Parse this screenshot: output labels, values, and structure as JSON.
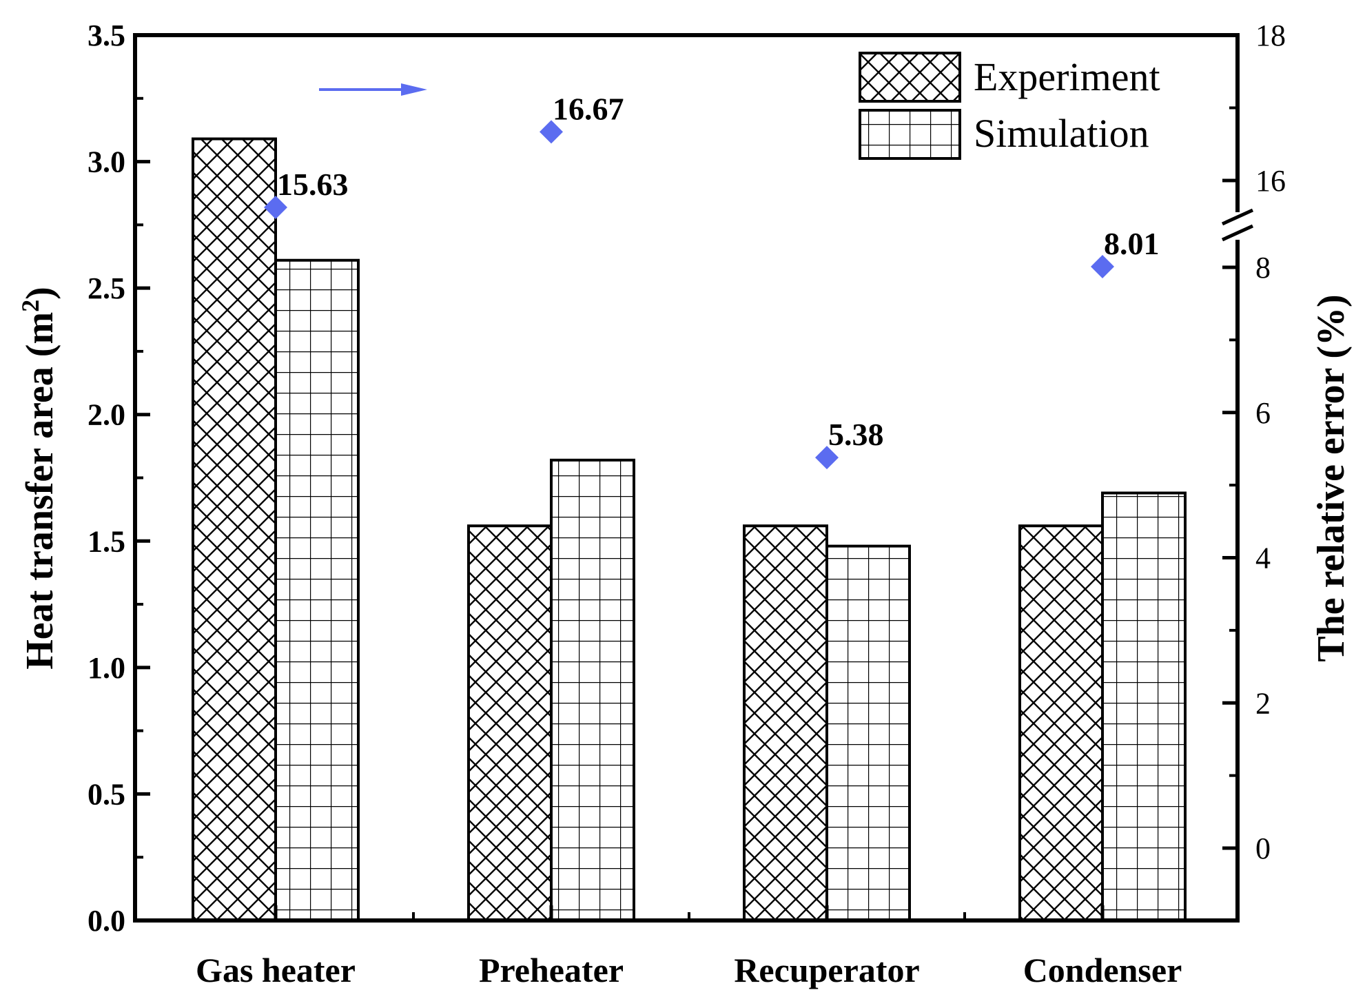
{
  "chart_data": {
    "type": "bar",
    "categories": [
      "Gas heater",
      "Preheater",
      "Recuperator",
      "Condenser"
    ],
    "series": [
      {
        "name": "Experiment",
        "pattern": "crosshatch",
        "values": [
          3.09,
          1.56,
          1.56,
          1.56
        ]
      },
      {
        "name": "Simulation",
        "pattern": "grid",
        "values": [
          2.61,
          1.82,
          1.48,
          1.69
        ]
      }
    ],
    "relative_error": {
      "name": "The relative error",
      "marker": "diamond",
      "color": "#5b6cf0",
      "values": [
        15.63,
        16.67,
        5.38,
        8.01
      ],
      "labels": [
        "15.63",
        "16.67",
        "5.38",
        "8.01"
      ]
    },
    "left_axis": {
      "label_main": "Heat transfer area (m",
      "label_sup": "2",
      "label_end": ")",
      "ylim": [
        0,
        3.5
      ],
      "ticks": [
        "0.0",
        "0.5",
        "1.0",
        "1.5",
        "2.0",
        "2.5",
        "3.0",
        "3.5"
      ],
      "tick_values": [
        0,
        0.5,
        1.0,
        1.5,
        2.0,
        2.5,
        3.0,
        3.5
      ]
    },
    "right_axis": {
      "label": "The relative error (%)",
      "broken": true,
      "lower_segment": {
        "range": [
          -1,
          8.5
        ],
        "ticks": [
          "0",
          "2",
          "4",
          "6",
          "8"
        ],
        "tick_values": [
          0,
          2,
          4,
          6,
          8
        ]
      },
      "upper_segment": {
        "range": [
          15.6,
          18
        ],
        "ticks": [
          "16",
          "18"
        ],
        "tick_values": [
          16,
          18
        ]
      }
    },
    "legend": {
      "position": "top-right",
      "entries": [
        "Experiment",
        "Simulation"
      ]
    },
    "arrow_direction": "right",
    "arrow_color": "#5b6cf0"
  }
}
